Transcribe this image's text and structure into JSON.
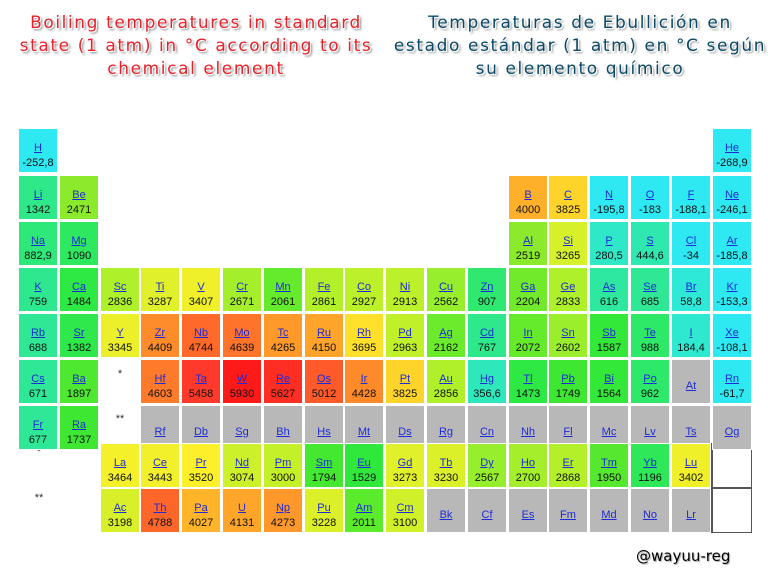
{
  "titles": {
    "english": "Boiling temperatures in standard state (1 atm) in °C according to its chemical element",
    "spanish": "Temperaturas de Ebullición en estado estándar (1 atm) en °C según su elemento químico"
  },
  "markers": {
    "lanthanide": "*",
    "actinide": "**"
  },
  "watermark": "@wayuu-reg",
  "elements": [
    {
      "symbol": "H",
      "value": "-252,8",
      "col": 1,
      "row": 1,
      "color": "#2ee8f2"
    },
    {
      "symbol": "He",
      "value": "-268,9",
      "col": 18,
      "row": 1,
      "color": "#2ee8f2"
    },
    {
      "symbol": "Li",
      "value": "1342",
      "col": 1,
      "row": 2,
      "color": "#2ee88a"
    },
    {
      "symbol": "Be",
      "value": "2471",
      "col": 2,
      "row": 2,
      "color": "#8cea2c"
    },
    {
      "symbol": "B",
      "value": "4000",
      "col": 13,
      "row": 2,
      "color": "#ffb02a"
    },
    {
      "symbol": "C",
      "value": "3825",
      "col": 14,
      "row": 2,
      "color": "#ffd42a"
    },
    {
      "symbol": "N",
      "value": "-195,8",
      "col": 15,
      "row": 2,
      "color": "#2ee8f2"
    },
    {
      "symbol": "O",
      "value": "-183",
      "col": 16,
      "row": 2,
      "color": "#2ee8f2"
    },
    {
      "symbol": "F",
      "value": "-188,1",
      "col": 17,
      "row": 2,
      "color": "#2ee8f2"
    },
    {
      "symbol": "Ne",
      "value": "-246,1",
      "col": 18,
      "row": 2,
      "color": "#2ee8f2"
    },
    {
      "symbol": "Na",
      "value": "882,9",
      "col": 1,
      "row": 3,
      "color": "#2ee87a"
    },
    {
      "symbol": "Mg",
      "value": "1090",
      "col": 2,
      "row": 3,
      "color": "#2ee860"
    },
    {
      "symbol": "Al",
      "value": "2519",
      "col": 13,
      "row": 3,
      "color": "#8cea2c"
    },
    {
      "symbol": "Si",
      "value": "3265",
      "col": 14,
      "row": 3,
      "color": "#d6f02a"
    },
    {
      "symbol": "P",
      "value": "280,5",
      "col": 15,
      "row": 3,
      "color": "#2ee8c8"
    },
    {
      "symbol": "S",
      "value": "444,6",
      "col": 16,
      "row": 3,
      "color": "#2ee8b0"
    },
    {
      "symbol": "Cl",
      "value": "-34",
      "col": 17,
      "row": 3,
      "color": "#2ee8f2"
    },
    {
      "symbol": "Ar",
      "value": "-185,8",
      "col": 18,
      "row": 3,
      "color": "#2ee8f2"
    },
    {
      "symbol": "K",
      "value": "759",
      "col": 1,
      "row": 4,
      "color": "#2ee890"
    },
    {
      "symbol": "Ca",
      "value": "1484",
      "col": 2,
      "row": 4,
      "color": "#2ee844"
    },
    {
      "symbol": "Sc",
      "value": "2836",
      "col": 3,
      "row": 4,
      "color": "#aef02a"
    },
    {
      "symbol": "Ti",
      "value": "3287",
      "col": 4,
      "row": 4,
      "color": "#e0f02a"
    },
    {
      "symbol": "V",
      "value": "3407",
      "col": 5,
      "row": 4,
      "color": "#f0f02a"
    },
    {
      "symbol": "Cr",
      "value": "2671",
      "col": 6,
      "row": 4,
      "color": "#a4ee2c"
    },
    {
      "symbol": "Mn",
      "value": "2061",
      "col": 7,
      "row": 4,
      "color": "#66ea2c"
    },
    {
      "symbol": "Fe",
      "value": "2861",
      "col": 8,
      "row": 4,
      "color": "#b4f02a"
    },
    {
      "symbol": "Co",
      "value": "2927",
      "col": 9,
      "row": 4,
      "color": "#bcf02a"
    },
    {
      "symbol": "Ni",
      "value": "2913",
      "col": 10,
      "row": 4,
      "color": "#bcf02a"
    },
    {
      "symbol": "Cu",
      "value": "2562",
      "col": 11,
      "row": 4,
      "color": "#96ee2c"
    },
    {
      "symbol": "Zn",
      "value": "907",
      "col": 12,
      "row": 4,
      "color": "#2ee870"
    },
    {
      "symbol": "Ga",
      "value": "2204",
      "col": 13,
      "row": 4,
      "color": "#72ea2c"
    },
    {
      "symbol": "Ge",
      "value": "2833",
      "col": 14,
      "row": 4,
      "color": "#aef02a"
    },
    {
      "symbol": "As",
      "value": "616",
      "col": 15,
      "row": 4,
      "color": "#2ee8a0"
    },
    {
      "symbol": "Se",
      "value": "685",
      "col": 16,
      "row": 4,
      "color": "#2ee896"
    },
    {
      "symbol": "Br",
      "value": "58,8",
      "col": 17,
      "row": 4,
      "color": "#2ee8d8"
    },
    {
      "symbol": "Kr",
      "value": "-153,3",
      "col": 18,
      "row": 4,
      "color": "#2ee8f2"
    },
    {
      "symbol": "Rb",
      "value": "688",
      "col": 1,
      "row": 5,
      "color": "#2ee896"
    },
    {
      "symbol": "Sr",
      "value": "1382",
      "col": 2,
      "row": 5,
      "color": "#2ee84c"
    },
    {
      "symbol": "Y",
      "value": "3345",
      "col": 3,
      "row": 5,
      "color": "#ecf02a"
    },
    {
      "symbol": "Zr",
      "value": "4409",
      "col": 4,
      "row": 5,
      "color": "#ff8c2a"
    },
    {
      "symbol": "Nb",
      "value": "4744",
      "col": 5,
      "row": 5,
      "color": "#ff6a2a"
    },
    {
      "symbol": "Mo",
      "value": "4639",
      "col": 6,
      "row": 5,
      "color": "#ff742a"
    },
    {
      "symbol": "Tc",
      "value": "4265",
      "col": 7,
      "row": 5,
      "color": "#ff9a2a"
    },
    {
      "symbol": "Ru",
      "value": "4150",
      "col": 8,
      "row": 5,
      "color": "#ffa42a"
    },
    {
      "symbol": "Rh",
      "value": "3695",
      "col": 9,
      "row": 5,
      "color": "#ffe02a"
    },
    {
      "symbol": "Pd",
      "value": "2963",
      "col": 10,
      "row": 5,
      "color": "#c0f02a"
    },
    {
      "symbol": "Ag",
      "value": "2162",
      "col": 11,
      "row": 5,
      "color": "#6cea2c"
    },
    {
      "symbol": "Cd",
      "value": "767",
      "col": 12,
      "row": 5,
      "color": "#2ee88c"
    },
    {
      "symbol": "In",
      "value": "2072",
      "col": 13,
      "row": 5,
      "color": "#66ea2c"
    },
    {
      "symbol": "Sn",
      "value": "2602",
      "col": 14,
      "row": 5,
      "color": "#9aee2c"
    },
    {
      "symbol": "Sb",
      "value": "1587",
      "col": 15,
      "row": 5,
      "color": "#34e83a"
    },
    {
      "symbol": "Te",
      "value": "988",
      "col": 16,
      "row": 5,
      "color": "#2ee868"
    },
    {
      "symbol": "I",
      "value": "184,4",
      "col": 17,
      "row": 5,
      "color": "#2ee8d0"
    },
    {
      "symbol": "Xe",
      "value": "-108,1",
      "col": 18,
      "row": 5,
      "color": "#2ee8f2"
    },
    {
      "symbol": "Cs",
      "value": "671",
      "col": 1,
      "row": 6,
      "color": "#2ee898"
    },
    {
      "symbol": "Ba",
      "value": "1897",
      "col": 2,
      "row": 6,
      "color": "#4ee830"
    },
    {
      "symbol": "Hf",
      "value": "4603",
      "col": 4,
      "row": 6,
      "color": "#ff7a2a"
    },
    {
      "symbol": "Ta",
      "value": "5458",
      "col": 5,
      "row": 6,
      "color": "#ff3a2a"
    },
    {
      "symbol": "W",
      "value": "5930",
      "col": 6,
      "row": 6,
      "color": "#ff1a1a"
    },
    {
      "symbol": "Re",
      "value": "5627",
      "col": 7,
      "row": 6,
      "color": "#ff2e22"
    },
    {
      "symbol": "Os",
      "value": "5012",
      "col": 8,
      "row": 6,
      "color": "#ff5a2a"
    },
    {
      "symbol": "Ir",
      "value": "4428",
      "col": 9,
      "row": 6,
      "color": "#ff8a2a"
    },
    {
      "symbol": "Pt",
      "value": "3825",
      "col": 10,
      "row": 6,
      "color": "#ffd42a"
    },
    {
      "symbol": "Au",
      "value": "2856",
      "col": 11,
      "row": 6,
      "color": "#b0f02a"
    },
    {
      "symbol": "Hg",
      "value": "356,6",
      "col": 12,
      "row": 6,
      "color": "#2ee8bc"
    },
    {
      "symbol": "Tl",
      "value": "1473",
      "col": 13,
      "row": 6,
      "color": "#2ee844"
    },
    {
      "symbol": "Pb",
      "value": "1749",
      "col": 14,
      "row": 6,
      "color": "#3ee832"
    },
    {
      "symbol": "Bi",
      "value": "1564",
      "col": 15,
      "row": 6,
      "color": "#34e83a"
    },
    {
      "symbol": "Po",
      "value": "962",
      "col": 16,
      "row": 6,
      "color": "#2ee86a"
    },
    {
      "symbol": "At",
      "value": "",
      "col": 17,
      "row": 6,
      "color": "#b8b8b8"
    },
    {
      "symbol": "Rn",
      "value": "-61,7",
      "col": 18,
      "row": 6,
      "color": "#2ee8f2"
    },
    {
      "symbol": "Fr",
      "value": "677",
      "col": 1,
      "row": 7,
      "color": "#2ee898"
    },
    {
      "symbol": "Ra",
      "value": "1737",
      "col": 2,
      "row": 7,
      "color": "#3ee832"
    },
    {
      "symbol": "Rf",
      "value": "",
      "col": 4,
      "row": 7,
      "color": "#b8b8b8"
    },
    {
      "symbol": "Db",
      "value": "",
      "col": 5,
      "row": 7,
      "color": "#b8b8b8"
    },
    {
      "symbol": "Sg",
      "value": "",
      "col": 6,
      "row": 7,
      "color": "#b8b8b8"
    },
    {
      "symbol": "Bh",
      "value": "",
      "col": 7,
      "row": 7,
      "color": "#b8b8b8"
    },
    {
      "symbol": "Hs",
      "value": "",
      "col": 8,
      "row": 7,
      "color": "#b8b8b8"
    },
    {
      "symbol": "Mt",
      "value": "",
      "col": 9,
      "row": 7,
      "color": "#b8b8b8"
    },
    {
      "symbol": "Ds",
      "value": "",
      "col": 10,
      "row": 7,
      "color": "#b8b8b8"
    },
    {
      "symbol": "Rg",
      "value": "",
      "col": 11,
      "row": 7,
      "color": "#b8b8b8"
    },
    {
      "symbol": "Cn",
      "value": "",
      "col": 12,
      "row": 7,
      "color": "#b8b8b8"
    },
    {
      "symbol": "Nh",
      "value": "",
      "col": 13,
      "row": 7,
      "color": "#b8b8b8"
    },
    {
      "symbol": "Fl",
      "value": "",
      "col": 14,
      "row": 7,
      "color": "#b8b8b8"
    },
    {
      "symbol": "Mc",
      "value": "",
      "col": 15,
      "row": 7,
      "color": "#b8b8b8"
    },
    {
      "symbol": "Lv",
      "value": "",
      "col": 16,
      "row": 7,
      "color": "#b8b8b8"
    },
    {
      "symbol": "Ts",
      "value": "",
      "col": 17,
      "row": 7,
      "color": "#b8b8b8"
    },
    {
      "symbol": "Og",
      "value": "",
      "col": 18,
      "row": 7,
      "color": "#b8b8b8"
    },
    {
      "symbol": "La",
      "value": "3464",
      "col": 3,
      "row": 9,
      "color": "#f4f02a"
    },
    {
      "symbol": "Ce",
      "value": "3443",
      "col": 4,
      "row": 9,
      "color": "#f2f02a"
    },
    {
      "symbol": "Pr",
      "value": "3520",
      "col": 5,
      "row": 9,
      "color": "#fbf02a"
    },
    {
      "symbol": "Nd",
      "value": "3074",
      "col": 6,
      "row": 9,
      "color": "#ccf02a"
    },
    {
      "symbol": "Pm",
      "value": "3000",
      "col": 7,
      "row": 9,
      "color": "#c4f02a"
    },
    {
      "symbol": "Sm",
      "value": "1794",
      "col": 8,
      "row": 9,
      "color": "#44e830"
    },
    {
      "symbol": "Eu",
      "value": "1529",
      "col": 9,
      "row": 9,
      "color": "#30e83c"
    },
    {
      "symbol": "Gd",
      "value": "3273",
      "col": 10,
      "row": 9,
      "color": "#e0f02a"
    },
    {
      "symbol": "Tb",
      "value": "3230",
      "col": 11,
      "row": 9,
      "color": "#dcf02a"
    },
    {
      "symbol": "Dy",
      "value": "2567",
      "col": 12,
      "row": 9,
      "color": "#96ee2c"
    },
    {
      "symbol": "Ho",
      "value": "2700",
      "col": 13,
      "row": 9,
      "color": "#a4ee2c"
    },
    {
      "symbol": "Er",
      "value": "2868",
      "col": 14,
      "row": 9,
      "color": "#b4f02a"
    },
    {
      "symbol": "Tm",
      "value": "1950",
      "col": 15,
      "row": 9,
      "color": "#56e82e"
    },
    {
      "symbol": "Yb",
      "value": "1196",
      "col": 16,
      "row": 9,
      "color": "#2ee858"
    },
    {
      "symbol": "Lu",
      "value": "3402",
      "col": 17,
      "row": 9,
      "color": "#f0f02a"
    },
    {
      "symbol": "Ac",
      "value": "3198",
      "col": 3,
      "row": 10,
      "color": "#d8f02a"
    },
    {
      "symbol": "Th",
      "value": "4788",
      "col": 4,
      "row": 10,
      "color": "#ff662a"
    },
    {
      "symbol": "Pa",
      "value": "4027",
      "col": 5,
      "row": 10,
      "color": "#ffb42a"
    },
    {
      "symbol": "U",
      "value": "4131",
      "col": 6,
      "row": 10,
      "color": "#ffa62a"
    },
    {
      "symbol": "Np",
      "value": "4273",
      "col": 7,
      "row": 10,
      "color": "#ff982a"
    },
    {
      "symbol": "Pu",
      "value": "3228",
      "col": 8,
      "row": 10,
      "color": "#dcf02a"
    },
    {
      "symbol": "Am",
      "value": "2011",
      "col": 9,
      "row": 10,
      "color": "#5cea2c"
    },
    {
      "symbol": "Cm",
      "value": "3100",
      "col": 10,
      "row": 10,
      "color": "#d0f02a"
    },
    {
      "symbol": "Bk",
      "value": "",
      "col": 11,
      "row": 10,
      "color": "#b8b8b8"
    },
    {
      "symbol": "Cf",
      "value": "",
      "col": 12,
      "row": 10,
      "color": "#b8b8b8"
    },
    {
      "symbol": "Es",
      "value": "",
      "col": 13,
      "row": 10,
      "color": "#b8b8b8"
    },
    {
      "symbol": "Fm",
      "value": "",
      "col": 14,
      "row": 10,
      "color": "#b8b8b8"
    },
    {
      "symbol": "Md",
      "value": "",
      "col": 15,
      "row": 10,
      "color": "#b8b8b8"
    },
    {
      "symbol": "No",
      "value": "",
      "col": 16,
      "row": 10,
      "color": "#b8b8b8"
    },
    {
      "symbol": "Lr",
      "value": "",
      "col": 17,
      "row": 10,
      "color": "#b8b8b8"
    }
  ]
}
